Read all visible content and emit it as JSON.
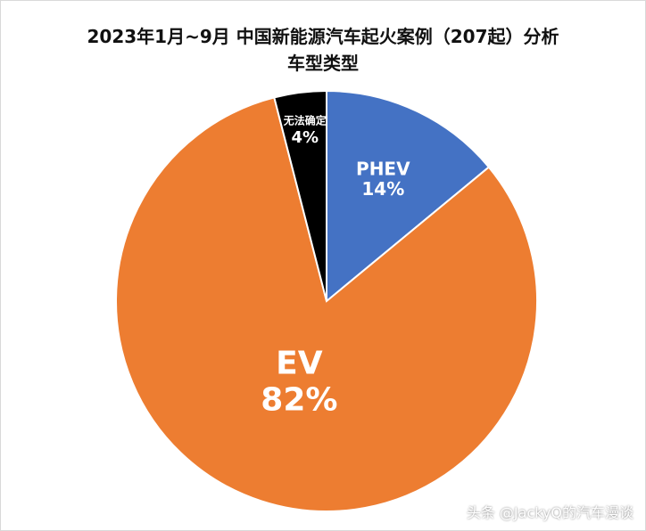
{
  "chart_data": {
    "type": "pie",
    "title_line1": "2023年1月~9月 中国新能源汽车起火案例（207起）分析",
    "title_line2": "车型类型",
    "start_angle_deg": 0,
    "direction": "clockwise",
    "slices": [
      {
        "label": "PHEV",
        "value_label": "14%",
        "value": 14,
        "color": "#4472C4"
      },
      {
        "label": "EV",
        "value_label": "82%",
        "value": 82,
        "color": "#ED7D31"
      },
      {
        "label": "无法确定",
        "value_label": "4%",
        "value": 4,
        "color": "#000000"
      }
    ]
  },
  "watermark": "头条 @JackyQ的汽车漫谈"
}
